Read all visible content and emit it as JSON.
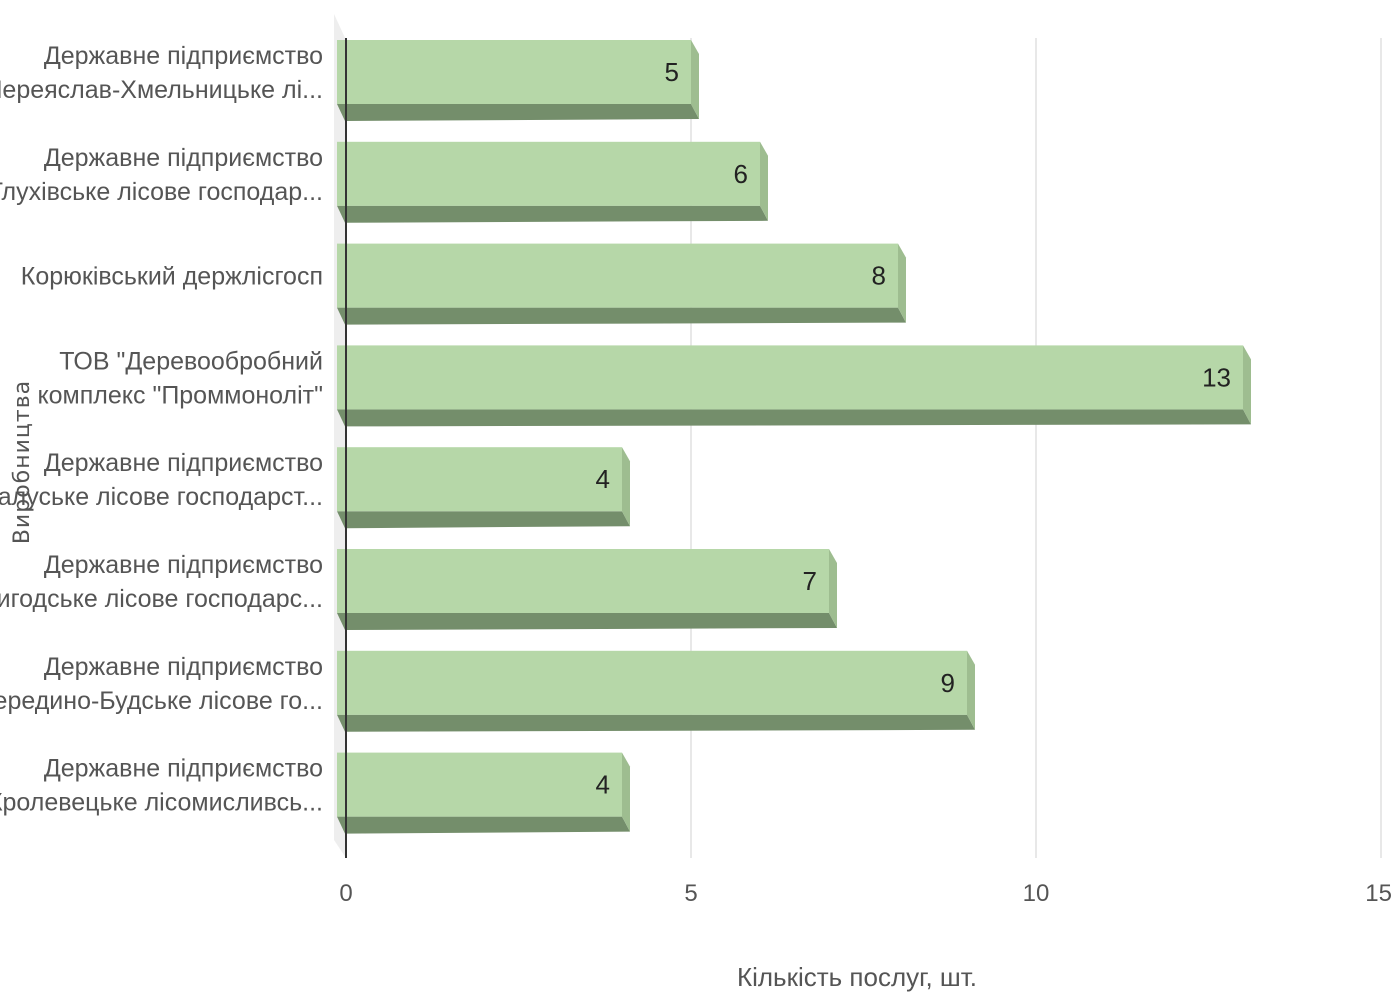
{
  "chart_data": {
    "type": "bar",
    "orientation": "horizontal",
    "style": "3d",
    "categories": [
      [
        "Державне підприємство",
        "\"Переяслав-Хмельницьке лі..."
      ],
      [
        "Державне підприємство",
        "\"Глухівське лісове господар..."
      ],
      [
        "Корюківський держлісгосп"
      ],
      [
        "ТОВ \"Деревообробний",
        "комплекс \"Проммоноліт\""
      ],
      [
        "Державне підприємство",
        "\"Калуське лісове господарст..."
      ],
      [
        "Державне підприємство",
        "\"Вигодське лісове господарс..."
      ],
      [
        "Державне підприємство",
        "\"Середино-Будське лісове го..."
      ],
      [
        "Державне підприємство",
        "\"Кролевецьке лісомисливсь..."
      ]
    ],
    "values": [
      5,
      6,
      8,
      13,
      4,
      7,
      9,
      4
    ],
    "data_labels": [
      "5",
      "6",
      "8",
      "13",
      "4",
      "7",
      "9",
      "4"
    ],
    "xlabel": "Кількість послуг, шт.",
    "ylabel": "Виробництва",
    "xlim": [
      0,
      15
    ],
    "xticks": [
      "0",
      "5",
      "10",
      "15"
    ],
    "grid": true,
    "legend": "none",
    "colors": {
      "bar_face": "#b6d7a8",
      "bar_bottom": "#748e6b",
      "bar_side": "#9ebd90",
      "gridline": "#d9d9d9",
      "axis": "#333333",
      "wall": "#eeeeee"
    }
  }
}
